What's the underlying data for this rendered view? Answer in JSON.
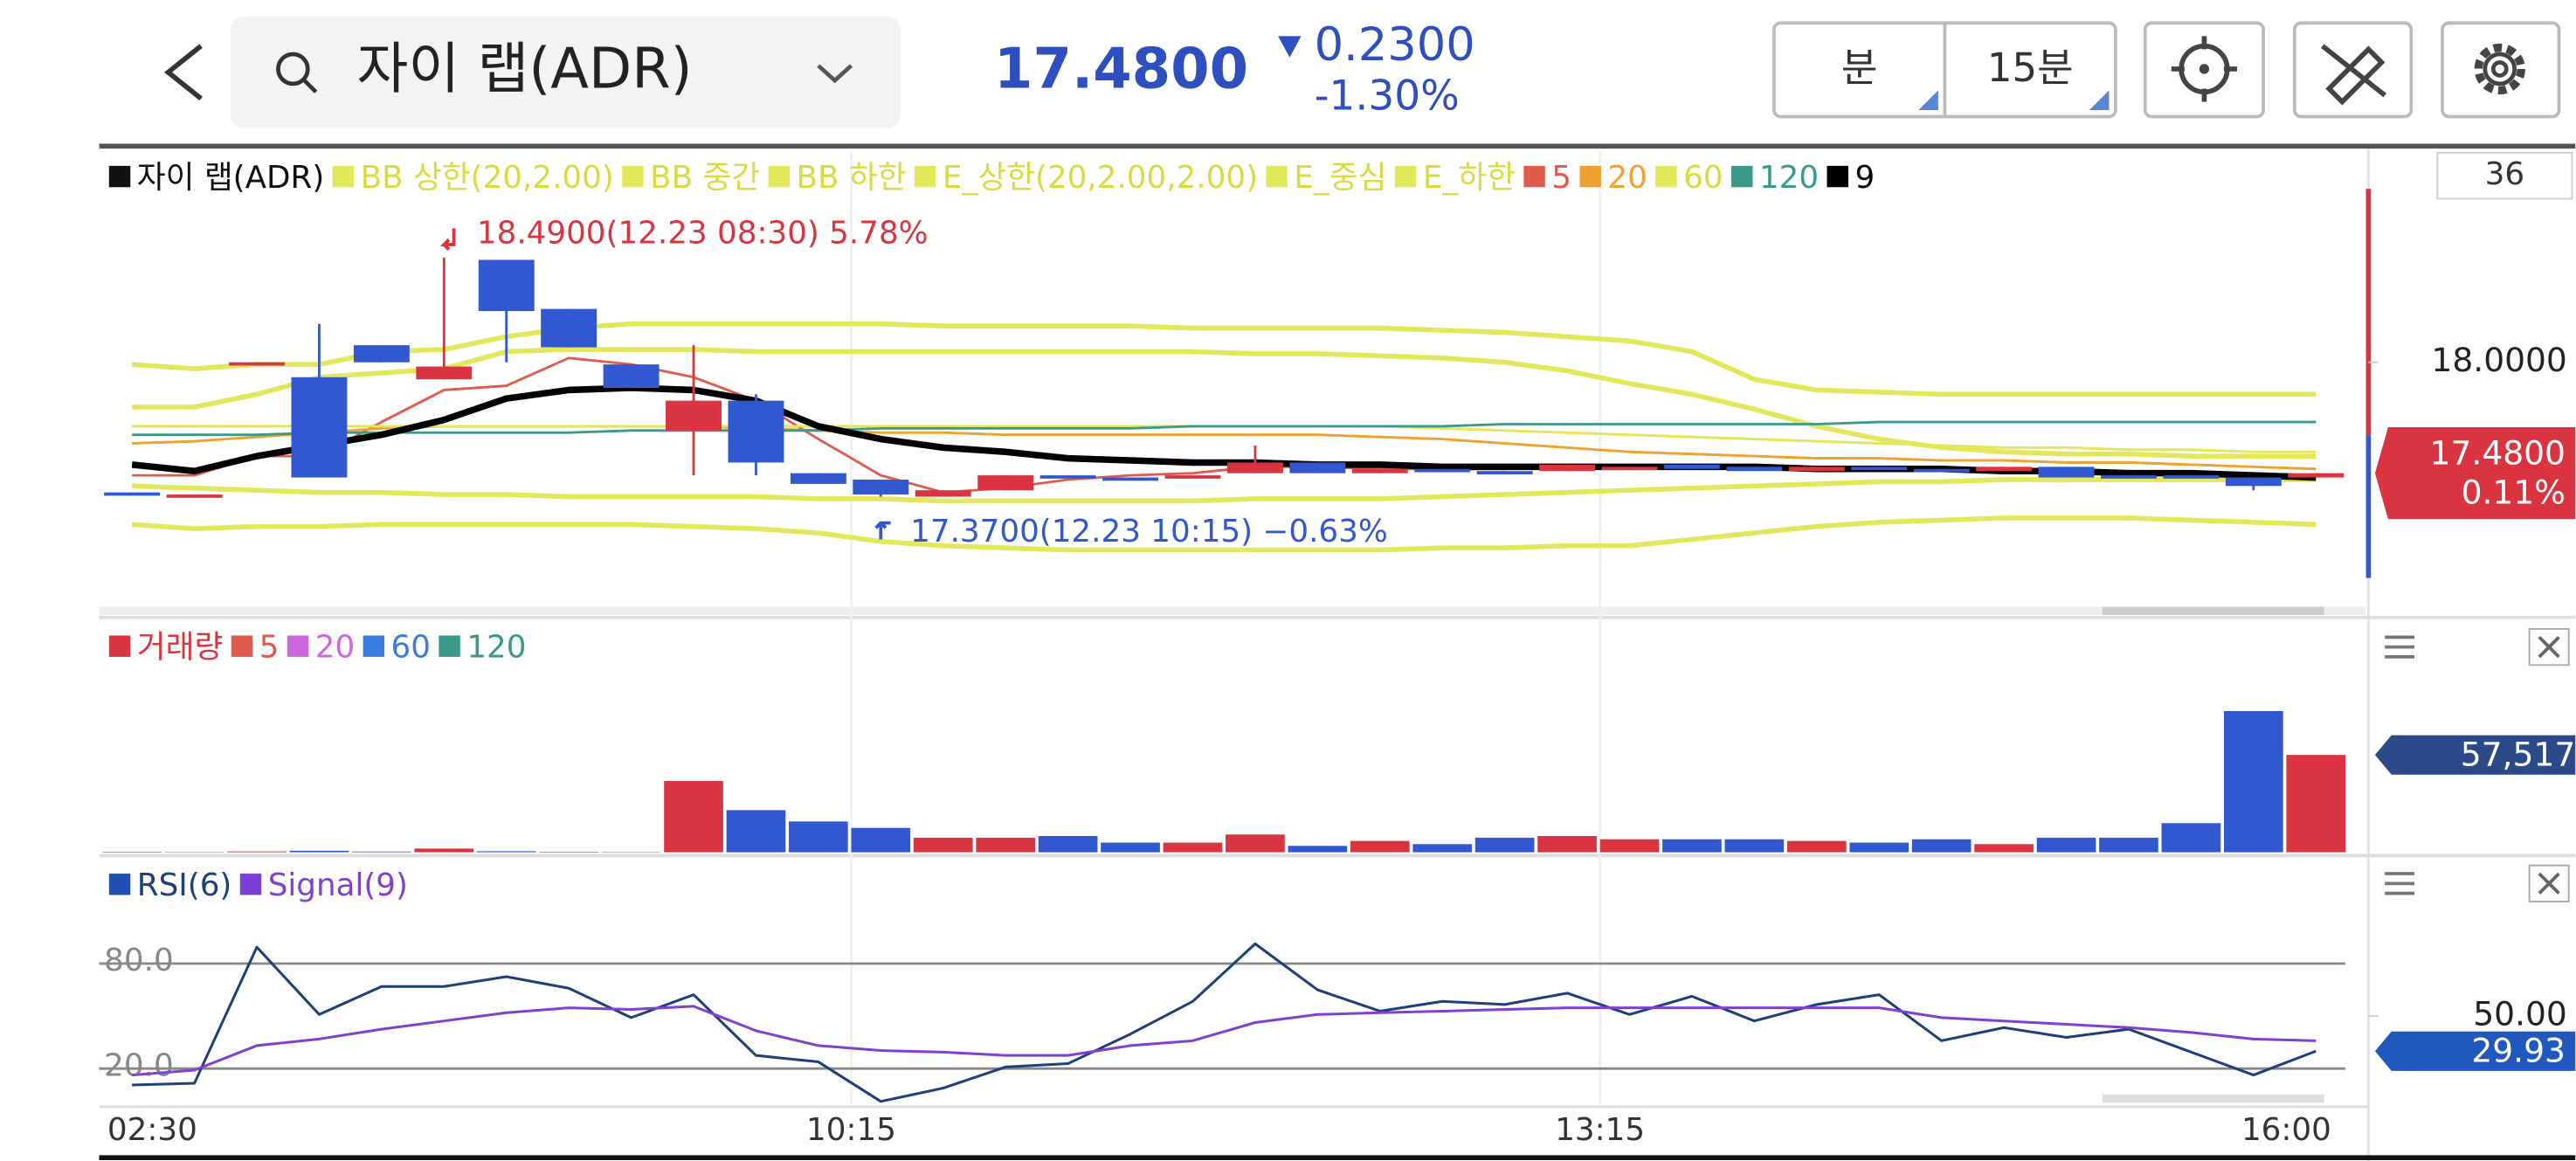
{
  "header": {
    "search_text": "자이 랩(ADR)",
    "price": "17.4800",
    "change": "0.2300",
    "change_rate": "-1.30%",
    "buttons": [
      "분",
      "15분"
    ]
  },
  "chart_data": [
    {
      "type": "candlestick",
      "name": "자이 랩(ADR)",
      "color": "#111111",
      "up_color": "#d9343f",
      "down_color": "#3158d0",
      "visible_count": "36",
      "ylim": [
        16.85,
        18.99
      ],
      "yticks": [
        {
          "value": 18,
          "label": "18.0000"
        }
      ],
      "open": [
        17.39,
        17.38,
        17.99,
        17.93,
        18.08,
        17.92,
        18.48,
        18.25,
        17.99,
        17.68,
        17.82,
        17.48,
        17.45,
        17.37,
        17.4,
        17.47,
        17.46,
        17.46,
        17.48,
        17.53,
        17.48,
        17.5,
        17.49,
        17.49,
        17.5,
        17.52,
        17.51,
        17.49,
        17.51,
        17.5,
        17.49,
        17.51,
        17.47,
        17.47,
        17.46,
        17.46
      ],
      "high": [
        17.39,
        17.38,
        18.0,
        18.18,
        18.08,
        18.49,
        18.48,
        18.25,
        17.99,
        18.08,
        17.85,
        17.48,
        17.45,
        17.4,
        17.47,
        17.47,
        17.46,
        17.47,
        17.61,
        17.53,
        17.5,
        17.5,
        17.49,
        17.52,
        17.51,
        17.52,
        17.51,
        17.51,
        17.51,
        17.5,
        17.51,
        17.51,
        17.47,
        17.47,
        17.46,
        17.48
      ],
      "low": [
        17.38,
        17.38,
        17.99,
        17.46,
        18.0,
        17.92,
        18.0,
        18.07,
        17.88,
        17.47,
        17.47,
        17.43,
        17.37,
        17.37,
        17.4,
        17.46,
        17.45,
        17.46,
        17.48,
        17.48,
        17.48,
        17.49,
        17.48,
        17.49,
        17.5,
        17.5,
        17.49,
        17.49,
        17.5,
        17.49,
        17.49,
        17.46,
        17.46,
        17.46,
        17.4,
        17.46
      ],
      "close": [
        17.38,
        17.38,
        18.0,
        17.46,
        18.0,
        17.98,
        18.24,
        18.07,
        17.88,
        17.82,
        17.53,
        17.43,
        17.38,
        17.4,
        17.47,
        17.46,
        17.45,
        17.47,
        17.53,
        17.48,
        17.5,
        17.49,
        17.48,
        17.52,
        17.51,
        17.5,
        17.49,
        17.51,
        17.5,
        17.49,
        17.51,
        17.46,
        17.46,
        17.46,
        17.42,
        17.48
      ],
      "high_label": "18.4900(12.23 08:30) 5.78%",
      "low_label": "17.3700(12.23 10:15) −0.63%",
      "current": {
        "value": 17.48,
        "label": "17.4800"
      },
      "current_change": "0.11%",
      "series": [
        {
          "name": "BB 상한(20,2.00)",
          "color": "#e3e85a",
          "width": 3,
          "values": [
            17.99,
            17.97,
            17.99,
            17.99,
            18.05,
            18.06,
            18.12,
            18.16,
            18.18,
            18.18,
            18.18,
            18.18,
            18.18,
            18.17,
            18.17,
            18.17,
            18.17,
            18.16,
            18.16,
            18.16,
            18.16,
            18.15,
            18.14,
            18.12,
            18.1,
            18.05,
            17.92,
            17.87,
            17.86,
            17.85,
            17.85,
            17.85,
            17.85,
            17.85,
            17.85,
            17.85
          ]
        },
        {
          "name": "BB 중간",
          "color": "#e3e85a",
          "width": 1.5,
          "values": [
            17.62,
            17.63,
            17.65,
            17.67,
            17.69,
            17.7,
            17.7,
            17.7,
            17.7,
            17.7,
            17.69,
            17.68,
            17.67,
            17.67,
            17.66,
            17.66,
            17.66,
            17.66,
            17.66,
            17.66,
            17.65,
            17.64,
            17.62,
            17.6,
            17.58,
            17.57,
            17.56,
            17.55,
            17.55,
            17.54,
            17.54,
            17.53,
            17.53,
            17.52,
            17.51,
            17.5
          ]
        },
        {
          "name": "BB 하한",
          "color": "#e3e85a",
          "width": 3,
          "values": [
            17.24,
            17.22,
            17.23,
            17.23,
            17.24,
            17.24,
            17.24,
            17.24,
            17.24,
            17.23,
            17.22,
            17.2,
            17.16,
            17.14,
            17.13,
            17.12,
            17.12,
            17.12,
            17.12,
            17.12,
            17.12,
            17.13,
            17.13,
            17.14,
            17.14,
            17.17,
            17.2,
            17.23,
            17.25,
            17.26,
            17.27,
            17.27,
            17.27,
            17.26,
            17.25,
            17.24
          ]
        },
        {
          "name": "E_상한(20,2.00,2.00)",
          "color": "#e3e85a",
          "width": 3,
          "values": [
            17.79,
            17.79,
            17.85,
            17.93,
            17.95,
            17.97,
            18.05,
            18.06,
            18.06,
            18.06,
            18.05,
            18.05,
            18.05,
            18.05,
            18.05,
            18.05,
            18.05,
            18.05,
            18.04,
            18.04,
            18.03,
            18.02,
            18.0,
            17.96,
            17.9,
            17.85,
            17.78,
            17.7,
            17.64,
            17.6,
            17.58,
            17.57,
            17.57,
            17.56,
            17.56,
            17.56
          ]
        },
        {
          "name": "E_중심",
          "color": "#e3e85a",
          "width": 1.5,
          "values": [
            17.7,
            17.7,
            17.7,
            17.7,
            17.7,
            17.7,
            17.7,
            17.7,
            17.7,
            17.7,
            17.7,
            17.7,
            17.7,
            17.7,
            17.7,
            17.7,
            17.7,
            17.7,
            17.7,
            17.7,
            17.7,
            17.69,
            17.68,
            17.67,
            17.66,
            17.65,
            17.64,
            17.63,
            17.62,
            17.61,
            17.6,
            17.6,
            17.59,
            17.59,
            17.58,
            17.58
          ]
        },
        {
          "name": "E_하한",
          "color": "#e3e85a",
          "width": 3,
          "values": [
            17.42,
            17.41,
            17.4,
            17.39,
            17.39,
            17.38,
            17.38,
            17.37,
            17.37,
            17.37,
            17.37,
            17.36,
            17.36,
            17.35,
            17.35,
            17.35,
            17.35,
            17.35,
            17.36,
            17.36,
            17.36,
            17.37,
            17.38,
            17.39,
            17.4,
            17.41,
            17.42,
            17.43,
            17.44,
            17.44,
            17.45,
            17.45,
            17.45,
            17.45,
            17.45,
            17.45
          ]
        },
        {
          "name": "5",
          "color": "#e05a4e",
          "width": 1.5,
          "values": [
            17.47,
            17.47,
            17.56,
            17.56,
            17.72,
            17.87,
            17.89,
            18.02,
            17.99,
            17.93,
            17.82,
            17.64,
            17.47,
            17.39,
            17.41,
            17.45,
            17.47,
            17.48,
            17.51,
            17.51,
            17.5,
            17.5,
            17.5,
            17.51,
            17.51,
            17.51,
            17.5,
            17.5,
            17.5,
            17.5,
            17.5,
            17.49,
            17.48,
            17.47,
            17.46,
            17.46
          ]
        },
        {
          "name": "20",
          "color": "#f0a030",
          "width": 1.5,
          "values": [
            17.62,
            17.63,
            17.65,
            17.67,
            17.69,
            17.7,
            17.7,
            17.7,
            17.7,
            17.7,
            17.69,
            17.68,
            17.67,
            17.67,
            17.66,
            17.66,
            17.66,
            17.66,
            17.66,
            17.66,
            17.65,
            17.64,
            17.62,
            17.6,
            17.58,
            17.57,
            17.56,
            17.55,
            17.55,
            17.54,
            17.54,
            17.53,
            17.53,
            17.52,
            17.51,
            17.5
          ]
        },
        {
          "name": "60",
          "color": "#e3e85a",
          "width": 1.5,
          "values": [
            17.7,
            17.7,
            17.7,
            17.7,
            17.7,
            17.7,
            17.7,
            17.7,
            17.7,
            17.7,
            17.7,
            17.7,
            17.7,
            17.7,
            17.7,
            17.7,
            17.7,
            17.7,
            17.7,
            17.7,
            17.7,
            17.69,
            17.68,
            17.67,
            17.66,
            17.65,
            17.64,
            17.63,
            17.62,
            17.61,
            17.6,
            17.6,
            17.59,
            17.59,
            17.58,
            17.58
          ]
        },
        {
          "name": "120",
          "color": "#3a9a8a",
          "width": 1.5,
          "values": [
            17.66,
            17.66,
            17.66,
            17.67,
            17.67,
            17.67,
            17.67,
            17.67,
            17.68,
            17.68,
            17.68,
            17.68,
            17.69,
            17.69,
            17.69,
            17.69,
            17.69,
            17.7,
            17.7,
            17.7,
            17.7,
            17.7,
            17.71,
            17.71,
            17.71,
            17.71,
            17.71,
            17.71,
            17.72,
            17.72,
            17.72,
            17.72,
            17.72,
            17.72,
            17.72,
            17.72
          ]
        },
        {
          "name": "9",
          "color": "#000000",
          "width": 4,
          "values": [
            17.52,
            17.49,
            17.56,
            17.61,
            17.66,
            17.73,
            17.83,
            17.87,
            17.88,
            17.87,
            17.82,
            17.7,
            17.64,
            17.6,
            17.58,
            17.55,
            17.54,
            17.53,
            17.53,
            17.52,
            17.52,
            17.51,
            17.51,
            17.51,
            17.51,
            17.51,
            17.51,
            17.5,
            17.5,
            17.5,
            17.49,
            17.49,
            17.48,
            17.48,
            17.47,
            17.46
          ]
        }
      ]
    },
    {
      "type": "bar",
      "ylim": [
        0,
        130000
      ],
      "series": [
        {
          "name": "거래량",
          "color": "#d9343f",
          "values": [
            300,
            200,
            500,
            900,
            400,
            2200,
            600,
            300,
            200,
            42100,
            24900,
            18200,
            14400,
            8600,
            8600,
            9600,
            5700,
            5700,
            10500,
            3800,
            6700,
            4800,
            8600,
            9600,
            7700,
            7700,
            7700,
            6700,
            5700,
            7700,
            4800,
            8600,
            8600,
            17200,
            83400,
            57517
          ]
        }
      ],
      "ma_legend": [
        {
          "name": "5",
          "color": "#e05a4e"
        },
        {
          "name": "20",
          "color": "#cc66dd"
        },
        {
          "name": "60",
          "color": "#3a7de0"
        },
        {
          "name": "120",
          "color": "#3a9a8a"
        }
      ],
      "current": {
        "value": 57517,
        "label": "57,517"
      }
    },
    {
      "type": "line",
      "ylim": [
        0,
        138
      ],
      "categories": [
        "02:30",
        null,
        null,
        null,
        null,
        null,
        null,
        null,
        null,
        null,
        null,
        null,
        "10:15",
        null,
        null,
        null,
        null,
        null,
        null,
        null,
        null,
        null,
        null,
        null,
        "13:15",
        null,
        null,
        null,
        null,
        null,
        null,
        null,
        null,
        null,
        null,
        "16:00"
      ],
      "yticks": [
        {
          "value": 80,
          "label": "80.0"
        },
        {
          "value": 20,
          "label": "20.0"
        }
      ],
      "right_ticks": [
        {
          "value": 50,
          "label": "50.00"
        }
      ],
      "current": {
        "value": 29.93,
        "label": "29.93"
      },
      "series": [
        {
          "name": "RSI(6)",
          "color": "#1d3f7a",
          "legend_color": "#1f4fb0",
          "values": [
            10.6,
            11.6,
            89.4,
            50.9,
            66.9,
            66.9,
            72.5,
            65.9,
            49.1,
            62.2,
            27.5,
            23.8,
            1.2,
            8.8,
            20.9,
            22.8,
            39.7,
            58.4,
            91.3,
            65.0,
            52.8,
            58.4,
            56.6,
            63.1,
            50.9,
            61.3,
            47.2,
            56.6,
            62.2,
            35.9,
            43.4,
            37.8,
            42.5,
            29.4,
            16.3,
            29.93
          ]
        },
        {
          "name": "Signal(9)",
          "color": "#8040d0",
          "legend_color": "#7b3fd6",
          "values": [
            16.3,
            19.1,
            33.1,
            36.9,
            42.5,
            47.2,
            51.9,
            54.7,
            53.8,
            55.6,
            41.6,
            33.1,
            30.3,
            29.4,
            27.5,
            27.5,
            33.1,
            35.9,
            46.3,
            50.9,
            51.9,
            52.8,
            53.8,
            54.7,
            54.7,
            54.7,
            54.7,
            54.7,
            54.7,
            49.1,
            47.2,
            45.3,
            43.4,
            40.6,
            36.9,
            35.9
          ]
        }
      ]
    }
  ]
}
